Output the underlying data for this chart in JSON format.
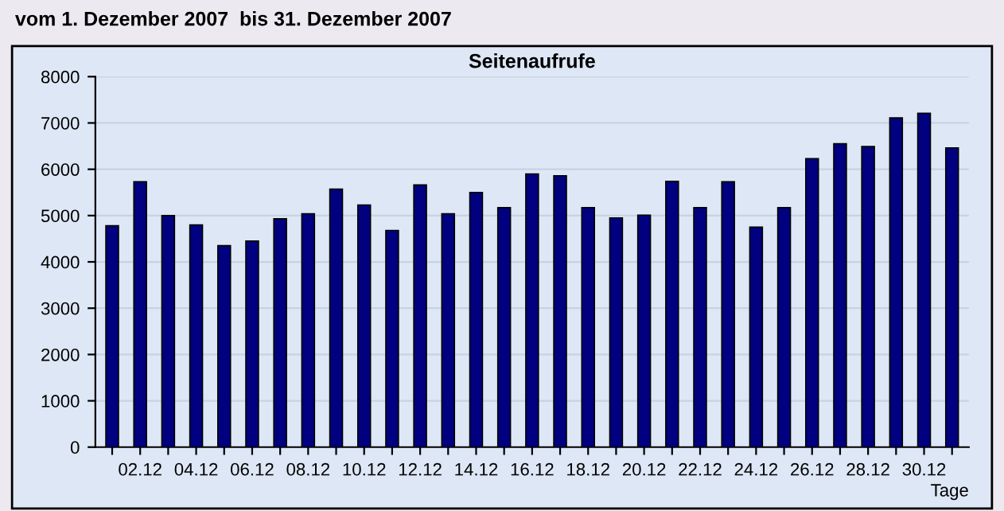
{
  "chart_data": {
    "type": "bar",
    "title": "Seitenaufrufe",
    "subtitle": "vom 1. Dezember 2007  bis 31. Dezember 2007",
    "xlabel": "Tage",
    "categories": [
      null,
      "02.12",
      null,
      "04.12",
      null,
      "06.12",
      null,
      "08.12",
      null,
      "10.12",
      null,
      "12.12",
      null,
      "14.12",
      null,
      "16.12",
      null,
      "18.12",
      null,
      "20.12",
      null,
      "22.12",
      null,
      "24.12",
      null,
      "26.12",
      null,
      "28.12",
      null,
      "30.12",
      null
    ],
    "values": [
      4780,
      5730,
      5000,
      4800,
      4350,
      4450,
      4930,
      5040,
      5570,
      5230,
      4680,
      5660,
      5040,
      5500,
      5170,
      5900,
      5860,
      5170,
      4950,
      5010,
      5740,
      5170,
      5730,
      4750,
      5170,
      6230,
      6550,
      6490,
      7110,
      7210,
      6460
    ],
    "color": "#000080",
    "ylim": [
      0,
      8000
    ],
    "yticks": [
      0,
      1000,
      2000,
      3000,
      4000,
      5000,
      6000,
      7000,
      8000
    ],
    "grid": "y"
  }
}
